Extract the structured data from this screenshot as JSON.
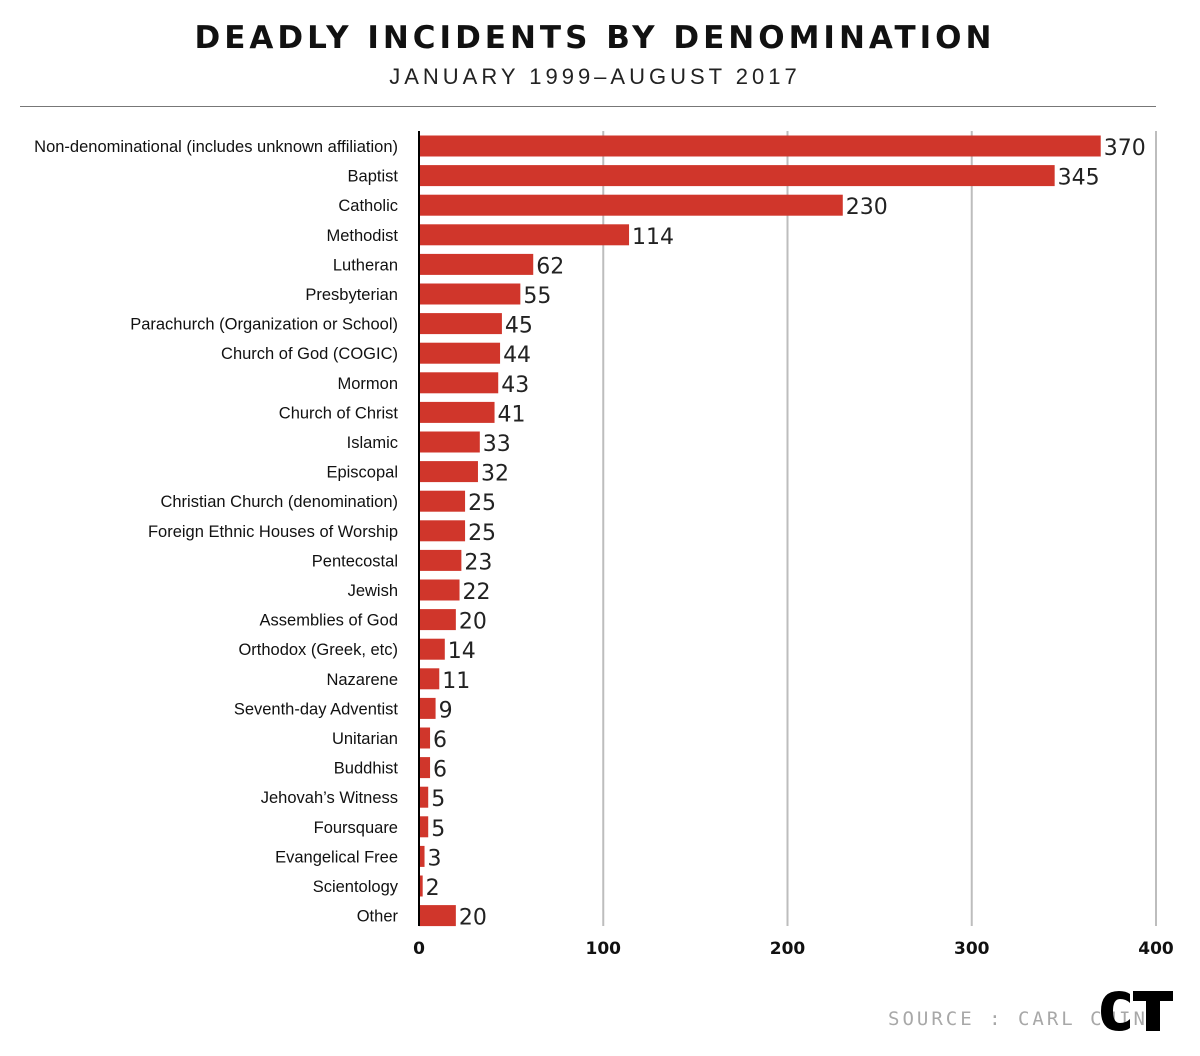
{
  "title": "DEADLY INCIDENTS BY DENOMINATION",
  "subtitle": "JANUARY 1999–AUGUST 2017",
  "source": "SOURCE : CARL CHINN",
  "logo_text": "CT",
  "colors": {
    "bar": "#d0362b",
    "grid": "#bdbdbd",
    "axis": "#000000",
    "text": "#111111",
    "source": "#a8a8a8"
  },
  "chart_data": {
    "type": "bar",
    "orientation": "horizontal",
    "title": "DEADLY INCIDENTS BY DENOMINATION",
    "subtitle": "JANUARY 1999–AUGUST 2017",
    "xlabel": "",
    "ylabel": "",
    "xlim": [
      0,
      400
    ],
    "xticks": [
      0,
      100,
      200,
      300,
      400
    ],
    "grid": true,
    "legend": "none",
    "categories": [
      "Non-denominational (includes unknown affiliation)",
      "Baptist",
      "Catholic",
      "Methodist",
      "Lutheran",
      "Presbyterian",
      "Parachurch (Organization or School)",
      "Church of God (COGIC)",
      "Mormon",
      "Church of Christ",
      "Islamic",
      "Episcopal",
      "Christian Church (denomination)",
      "Foreign Ethnic Houses of Worship",
      "Pentecostal",
      "Jewish",
      "Assemblies of God",
      "Orthodox (Greek, etc)",
      "Nazarene",
      "Seventh-day Adventist",
      "Unitarian",
      "Buddhist",
      "Jehovah’s Witness",
      "Foursquare",
      "Evangelical Free",
      "Scientology",
      "Other"
    ],
    "values": [
      370,
      345,
      230,
      114,
      62,
      55,
      45,
      44,
      43,
      41,
      33,
      32,
      25,
      25,
      23,
      22,
      20,
      14,
      11,
      9,
      6,
      6,
      5,
      5,
      3,
      2,
      20
    ]
  }
}
